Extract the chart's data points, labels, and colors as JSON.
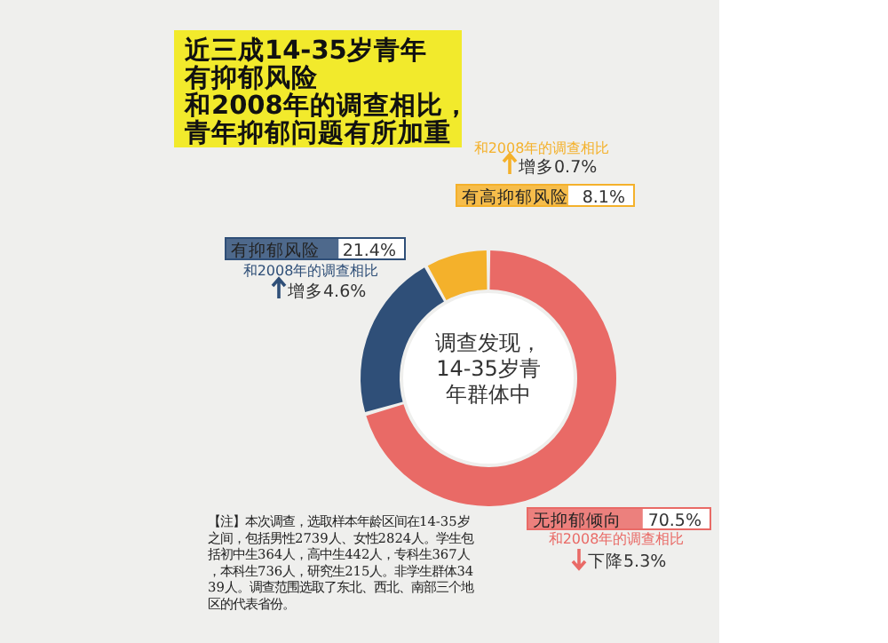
{
  "chart_data": {
    "type": "donut",
    "title": "近三成14-35岁青年有抑郁风险",
    "subtitle": "和2008年的调查相比，青年抑郁问题有所加重",
    "categories": [
      "无抑郁倾向",
      "有抑郁风险",
      "有高抑郁风险"
    ],
    "values": [
      70.5,
      21.4,
      8.1
    ],
    "colors": [
      "#e96a66",
      "#2f4f78",
      "#f4b12b"
    ],
    "value_labels": [
      "70.5%",
      "21.4%",
      "8.1%"
    ],
    "annotations": [
      "调查发现，14-35岁青年群体中",
      "和2008年的调查相比",
      "下降5.3%",
      "和2008年的调查相比",
      "增多4.6%",
      "和2008年的调查相比",
      "增多0.7%",
      "【注】本次调查，选取样本年龄区间在14-35岁之间，包括男性2739人、女性2824人。学生包括初中生364人，高中生442人，专科生367人，本科生736人，研究生215人。非学生群体3439人。调查范围选取了东北、西北、南部三个地区的代表省份。"
    ]
  }
}
